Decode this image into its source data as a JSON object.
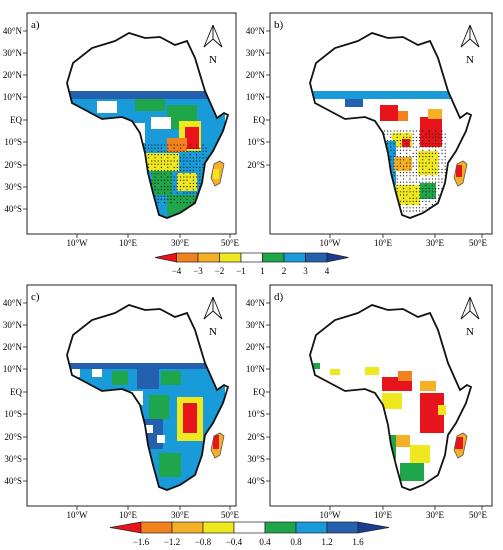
{
  "panels": [
    {
      "id": "a",
      "label": "a)",
      "lat_labels": [
        "40°N",
        "30°N",
        "20°N",
        "10°N",
        "EQ",
        "10°S",
        "20°S",
        "30°S",
        "40°S"
      ],
      "lon_labels": [
        "10°W",
        "10°E",
        "30°E",
        "50°E"
      ]
    },
    {
      "id": "b",
      "label": "b)",
      "lat_labels": [
        "40°N",
        "30°N",
        "20°N",
        "10°N",
        "EQ",
        "10°S",
        "20°S"
      ],
      "lon_labels": [
        "10°W",
        "10°E",
        "30°E",
        "50°E"
      ]
    },
    {
      "id": "c",
      "label": "c)",
      "lat_labels": [
        "40°N",
        "30°N",
        "20°N",
        "10°N",
        "EQ",
        "10°S",
        "20°S",
        "30°S",
        "40°S"
      ],
      "lon_labels": [
        "10°W",
        "10°E",
        "30°E",
        "50°E"
      ]
    },
    {
      "id": "d",
      "label": "d)",
      "lat_labels": [
        "40°N",
        "30°N",
        "20°N",
        "10°N",
        "EQ",
        "10°S",
        "20°S",
        "30°S",
        "40°S"
      ],
      "lon_labels": [
        "10°W",
        "10°E",
        "30°E",
        "50°E"
      ]
    }
  ],
  "north_arrow_label": "N",
  "colorbar_top": {
    "labels": [
      "−4",
      "−3",
      "−2",
      "−1",
      "1",
      "2",
      "3",
      "4"
    ],
    "colors": [
      "#e8141c",
      "#f3821e",
      "#f6b026",
      "#f0e81e",
      "#ffffff",
      "#1fa64a",
      "#189bd8",
      "#2460ad",
      "#1b3d8f"
    ]
  },
  "colorbar_bottom": {
    "labels": [
      "−1.6",
      "−1.2",
      "−0.8",
      "−0.4",
      "0.4",
      "0.8",
      "1.2",
      "1.6"
    ],
    "colors": [
      "#e8141c",
      "#f3821e",
      "#f6b026",
      "#f0e81e",
      "#ffffff",
      "#1fa64a",
      "#189bd8",
      "#2460ad",
      "#1b3d8f"
    ]
  },
  "palette": {
    "red": "#e8141c",
    "orange": "#f3821e",
    "yellow": "#f0e81e",
    "green": "#1fa64a",
    "lightblue": "#189bd8",
    "blue": "#2460ad"
  }
}
